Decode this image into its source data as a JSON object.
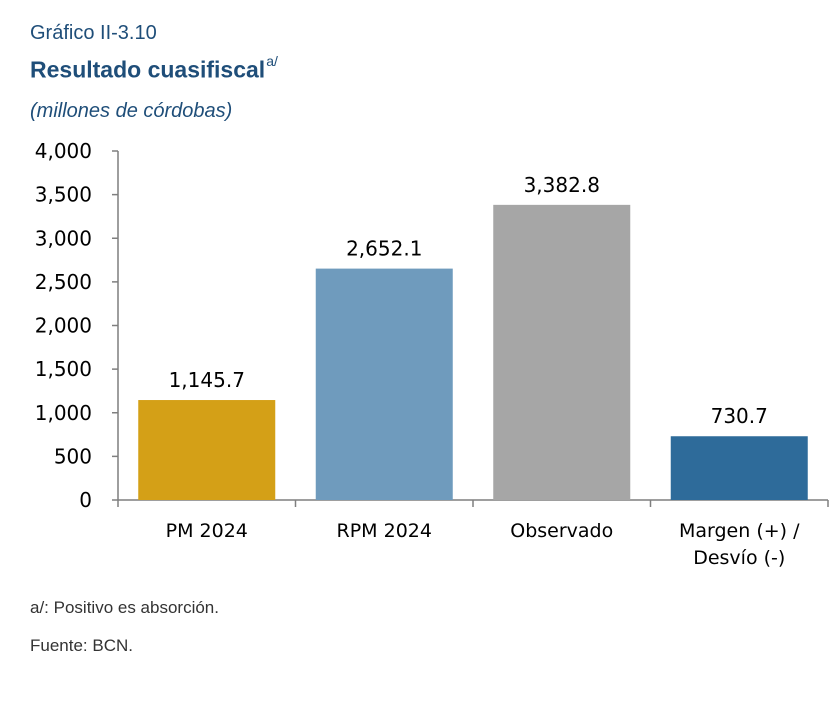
{
  "header": {
    "number": "Gráfico II-3.10",
    "title": "Resultado cuasifiscal",
    "title_superscript": "a/",
    "units": "(millones de córdobas)"
  },
  "footer": {
    "note": "a/: Positivo es absorción.",
    "source": "Fuente: BCN."
  },
  "chart_data": {
    "type": "bar",
    "categories": [
      [
        "PM 2024"
      ],
      [
        "RPM 2024"
      ],
      [
        "Observado"
      ],
      [
        "Margen (+) /",
        "Desvío (-)"
      ]
    ],
    "values": [
      1145.7,
      2652.1,
      3382.8,
      730.7
    ],
    "data_labels": [
      "1,145.7",
      "2,652.1",
      "3,382.8",
      "730.7"
    ],
    "bar_colors": [
      "#d4a017",
      "#6f9bbd",
      "#a6a6a6",
      "#2e6b9a"
    ],
    "ylim": [
      0,
      4000
    ],
    "yticks": [
      0,
      500,
      1000,
      1500,
      2000,
      2500,
      3000,
      3500,
      4000
    ],
    "ytick_labels": [
      "0",
      "500",
      "1,000",
      "1,500",
      "2,000",
      "2,500",
      "3,000",
      "3,500",
      "4,000"
    ],
    "grid": false,
    "legend": "none"
  }
}
